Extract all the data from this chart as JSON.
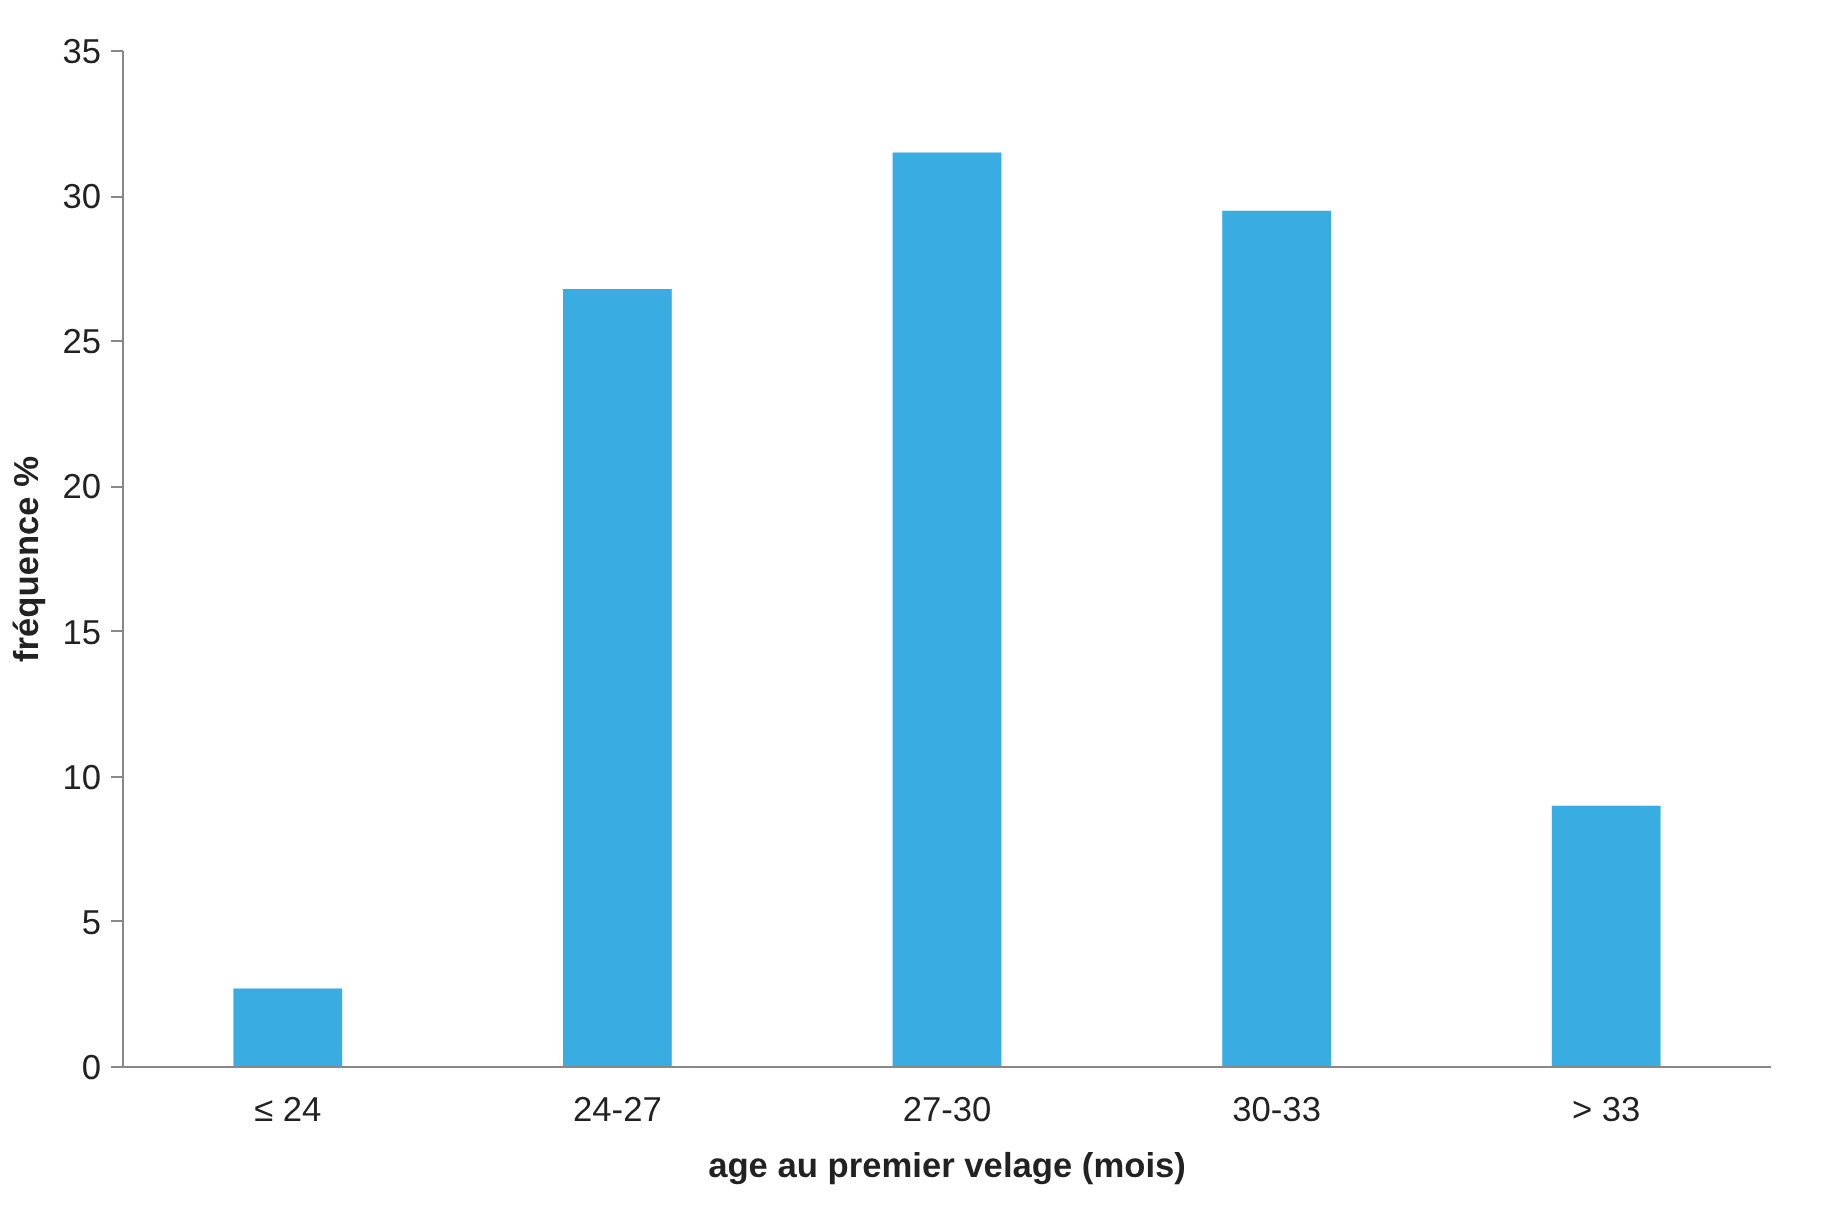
{
  "chart_data": {
    "type": "bar",
    "xlabel": "age au premier velage (mois)",
    "ylabel": "fréquence %",
    "categories": [
      "≤ 24",
      "24-27",
      "27-30",
      "30-33",
      "> 33"
    ],
    "values": [
      2.7,
      26.8,
      31.5,
      29.5,
      9.0
    ],
    "color": "#39ace2",
    "ylim": [
      0,
      35
    ],
    "yticks": [
      0,
      5,
      10,
      15,
      20,
      25,
      30,
      35
    ],
    "grid": false
  }
}
